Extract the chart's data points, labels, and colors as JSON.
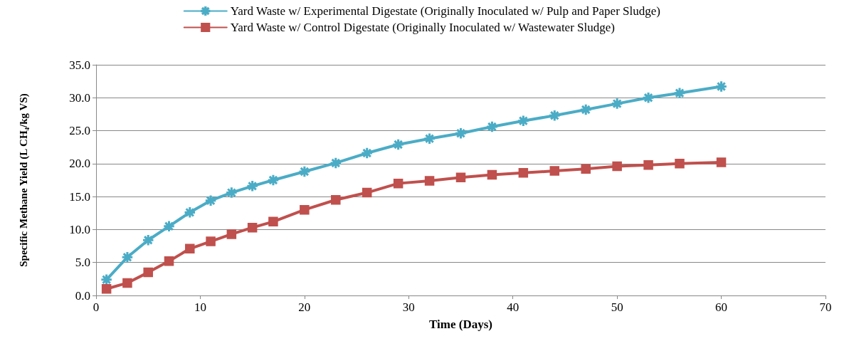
{
  "chart_data": {
    "type": "line",
    "xlabel": "Time (Days)",
    "ylabel": "Specific Methane Yield (L CH₄/kg VS)",
    "x": [
      1,
      3,
      5,
      7,
      9,
      11,
      13,
      15,
      17,
      20,
      23,
      26,
      29,
      32,
      35,
      38,
      41,
      44,
      47,
      50,
      53,
      56,
      60
    ],
    "series": [
      {
        "name": "Yard Waste w/ Experimental Digestate (Originally Inoculated w/ Pulp and Paper Sludge)",
        "color": "#4bacc6",
        "marker": "star",
        "values": [
          2.4,
          5.8,
          8.4,
          10.5,
          12.6,
          14.4,
          15.6,
          16.6,
          17.5,
          18.8,
          20.1,
          21.6,
          22.9,
          23.8,
          24.6,
          25.6,
          26.5,
          27.3,
          28.2,
          29.1,
          30.0,
          30.7,
          31.7
        ]
      },
      {
        "name": "Yard Waste w/ Control Digestate (Originally Inoculated w/ Wastewater Sludge)",
        "color": "#c0504d",
        "marker": "square",
        "values": [
          1.0,
          1.9,
          3.5,
          5.2,
          7.1,
          8.2,
          9.3,
          10.3,
          11.2,
          13.0,
          14.5,
          15.6,
          17.0,
          17.4,
          17.9,
          18.3,
          18.6,
          18.9,
          19.2,
          19.6,
          19.8,
          20.0,
          20.2
        ]
      }
    ],
    "xlim": [
      0,
      70
    ],
    "xticks": [
      0,
      10,
      20,
      30,
      40,
      50,
      60,
      70
    ],
    "ylim": [
      0,
      35
    ],
    "yticks": [
      {
        "value": 0,
        "label": "0.0"
      },
      {
        "value": 5,
        "label": "5.0"
      },
      {
        "value": 10,
        "label": "10.0"
      },
      {
        "value": 15,
        "label": "15.0"
      },
      {
        "value": 20,
        "label": "20.0"
      },
      {
        "value": 25,
        "label": "25.0"
      },
      {
        "value": 30,
        "label": "30.0"
      },
      {
        "value": 35,
        "label": "35.0"
      }
    ],
    "grid": "y",
    "legend": "top",
    "line_style": "solid"
  }
}
